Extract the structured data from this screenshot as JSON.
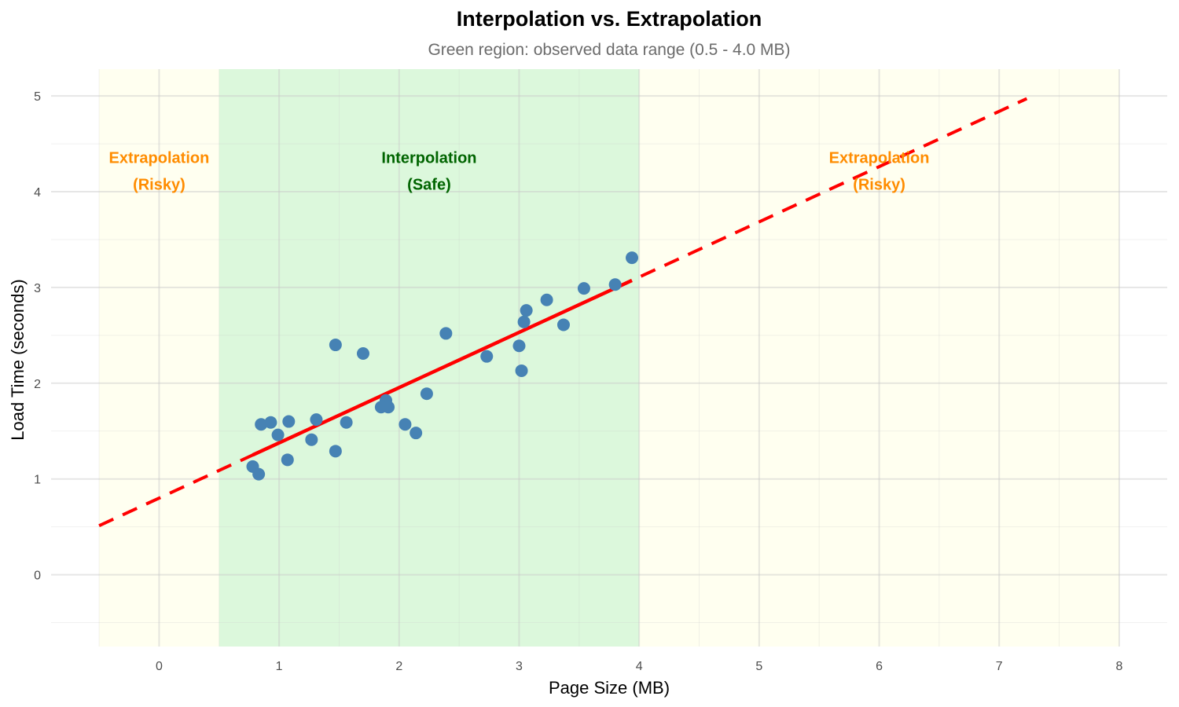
{
  "chart_data": {
    "type": "scatter",
    "title": "Interpolation vs. Extrapolation",
    "subtitle": "Green region: observed data range (0.5 - 4.0 MB)",
    "xlabel": "Page Size (MB)",
    "ylabel": "Load Time (seconds)",
    "xlim": [
      -0.9,
      8.4
    ],
    "ylim": [
      -0.75,
      5.28
    ],
    "x_ticks": [
      0,
      1,
      2,
      3,
      4,
      5,
      6,
      7,
      8
    ],
    "x_tick_labels": [
      "0",
      "1",
      "2",
      "3",
      "4",
      "5",
      "6",
      "7",
      "8"
    ],
    "y_ticks": [
      0,
      1,
      2,
      3,
      4,
      5
    ],
    "y_tick_labels": [
      "0",
      "1",
      "2",
      "3",
      "4",
      "5"
    ],
    "grid": true,
    "regions": [
      {
        "name": "extrapolation-left",
        "x_range": [
          -0.5,
          0.5
        ],
        "color": "#FFFFF0"
      },
      {
        "name": "interpolation",
        "x_range": [
          0.5,
          4.0
        ],
        "color": "#DCF8DC"
      },
      {
        "name": "extrapolation-right",
        "x_range": [
          4.0,
          8.0
        ],
        "color": "#FFFFF0"
      }
    ],
    "series": [
      {
        "name": "observations",
        "color": "#4682B4",
        "points": [
          [
            0.78,
            1.13
          ],
          [
            0.83,
            1.05
          ],
          [
            0.85,
            1.57
          ],
          [
            0.93,
            1.59
          ],
          [
            0.99,
            1.46
          ],
          [
            1.07,
            1.2
          ],
          [
            1.08,
            1.6
          ],
          [
            1.27,
            1.41
          ],
          [
            1.31,
            1.62
          ],
          [
            1.47,
            1.29
          ],
          [
            1.47,
            2.4
          ],
          [
            1.56,
            1.59
          ],
          [
            1.7,
            2.31
          ],
          [
            1.85,
            1.75
          ],
          [
            1.89,
            1.82
          ],
          [
            1.91,
            1.75
          ],
          [
            2.05,
            1.57
          ],
          [
            2.14,
            1.48
          ],
          [
            2.23,
            1.89
          ],
          [
            2.39,
            2.52
          ],
          [
            2.73,
            2.28
          ],
          [
            3.0,
            2.39
          ],
          [
            3.02,
            2.13
          ],
          [
            3.04,
            2.64
          ],
          [
            3.06,
            2.76
          ],
          [
            3.23,
            2.87
          ],
          [
            3.37,
            2.61
          ],
          [
            3.54,
            2.99
          ],
          [
            3.8,
            3.03
          ],
          [
            3.94,
            3.31
          ]
        ]
      }
    ],
    "fit_line": {
      "color": "#FF0000",
      "slope": 0.577,
      "intercept": 0.8,
      "solid_range": [
        0.78,
        3.94
      ],
      "dashed_range": [
        -0.5,
        7.23
      ]
    },
    "annotations": [
      {
        "lines": [
          "Extrapolation",
          "(Risky)"
        ],
        "x": 0.0,
        "y": 4.2,
        "color": "#FF8C00"
      },
      {
        "lines": [
          "Interpolation",
          "(Safe)"
        ],
        "x": 2.25,
        "y": 4.2,
        "color": "#006400"
      },
      {
        "lines": [
          "Extrapolation",
          "(Risky)"
        ],
        "x": 6.0,
        "y": 4.2,
        "color": "#FF8C00"
      }
    ]
  }
}
